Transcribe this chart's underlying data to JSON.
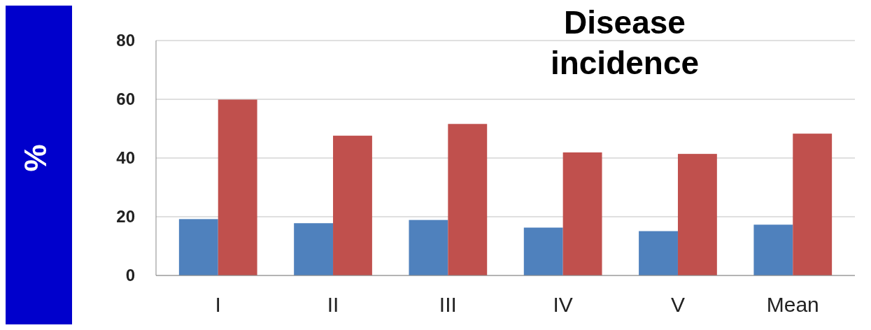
{
  "chart_data": {
    "type": "bar",
    "title": "Disease incidence",
    "ylabel": "%",
    "categories": [
      "I",
      "II",
      "III",
      "IV",
      "V",
      "Mean"
    ],
    "series": [
      {
        "color": "#4f81bd",
        "values": [
          19.2,
          17.8,
          18.9,
          16.3,
          15.1,
          17.3
        ]
      },
      {
        "color": "#c0504d",
        "values": [
          59.9,
          47.6,
          51.6,
          41.9,
          41.4,
          48.3
        ]
      }
    ],
    "ylim": [
      0,
      80
    ],
    "yticks": [
      0,
      20,
      40,
      60,
      80
    ],
    "grid": "y"
  }
}
